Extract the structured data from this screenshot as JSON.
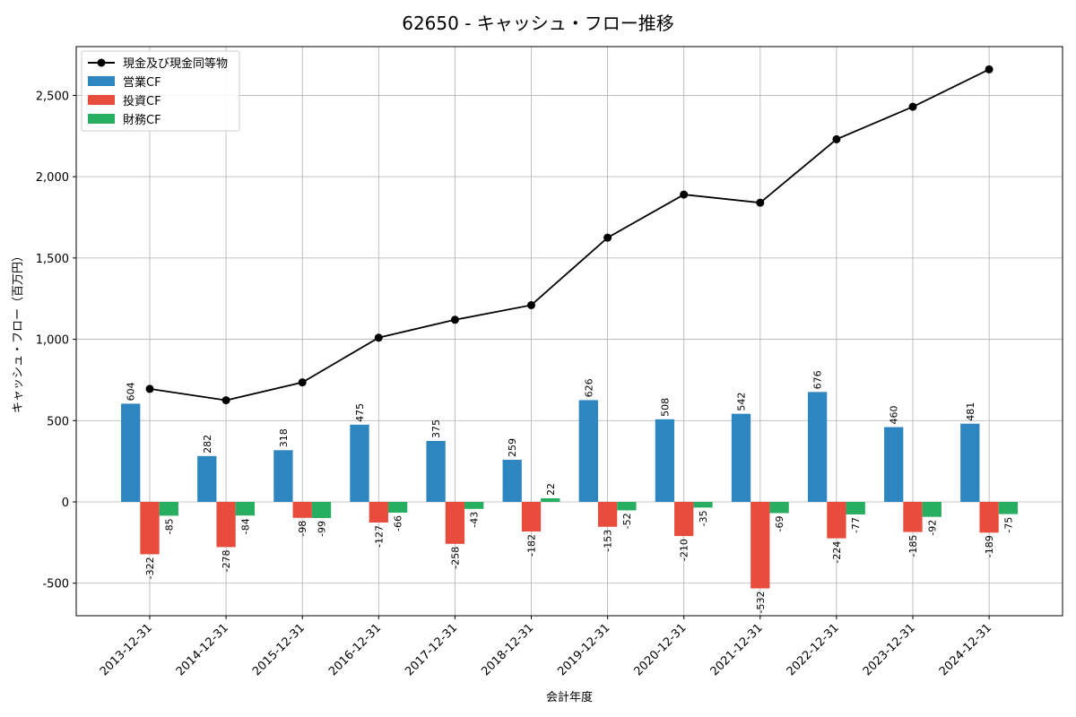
{
  "chart_data": {
    "type": "bar",
    "title": "62650 - キャッシュ・フロー推移",
    "xlabel": "会計年度",
    "ylabel": "キャッシュ・フロー（百万円）",
    "ylim": [
      -700,
      2800
    ],
    "yticks": [
      -500,
      0,
      500,
      1000,
      1500,
      2000,
      2500
    ],
    "ytick_labels": [
      "-500",
      "0",
      "500",
      "1,000",
      "1,500",
      "2,000",
      "2,500"
    ],
    "grid": true,
    "legend_position": "top-left",
    "categories": [
      "2013-12-31",
      "2014-12-31",
      "2015-12-31",
      "2016-12-31",
      "2017-12-31",
      "2018-12-31",
      "2019-12-31",
      "2020-12-31",
      "2021-12-31",
      "2022-12-31",
      "2023-12-31",
      "2024-12-31"
    ],
    "series": [
      {
        "name": "営業CF",
        "kind": "bar",
        "color": "#2e86c1",
        "values": [
          604,
          282,
          318,
          475,
          375,
          259,
          626,
          508,
          542,
          676,
          460,
          481
        ]
      },
      {
        "name": "投資CF",
        "kind": "bar",
        "color": "#e74c3c",
        "values": [
          -322,
          -278,
          -98,
          -127,
          -258,
          -182,
          -153,
          -210,
          -532,
          -224,
          -185,
          -189
        ]
      },
      {
        "name": "財務CF",
        "kind": "bar",
        "color": "#27ae60",
        "values": [
          -85,
          -84,
          -99,
          -66,
          -43,
          22,
          -52,
          -35,
          -69,
          -77,
          -92,
          -75
        ]
      }
    ],
    "line": {
      "name": "現金及び現金同等物",
      "color": "#000000",
      "values": [
        695,
        625,
        735,
        1010,
        1120,
        1210,
        1625,
        1890,
        1840,
        2230,
        2430,
        2660
      ]
    }
  }
}
